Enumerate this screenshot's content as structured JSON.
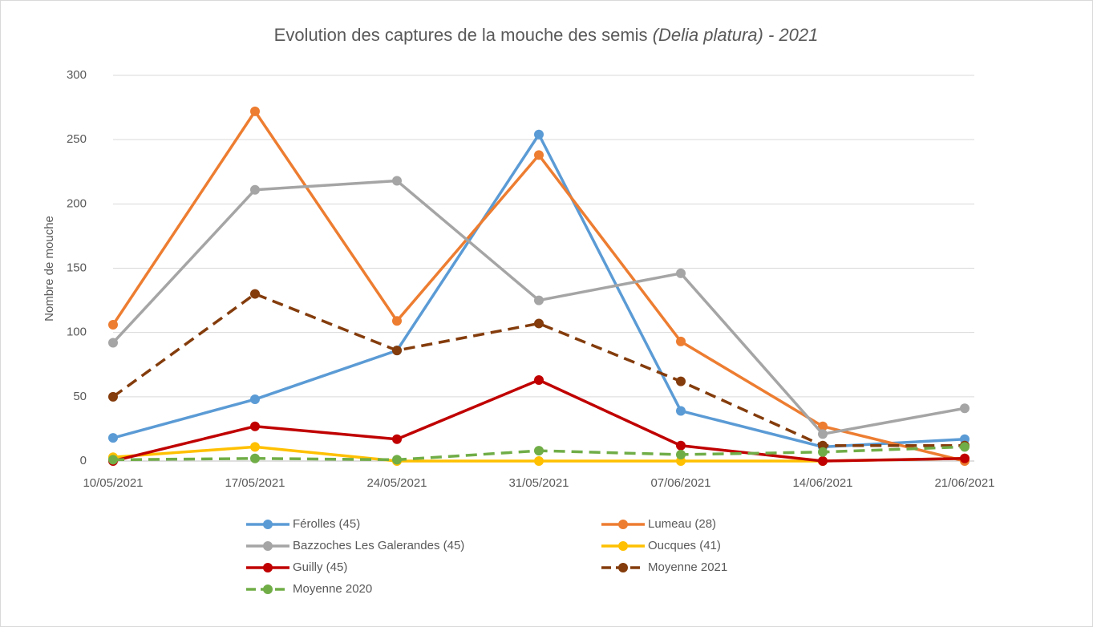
{
  "chart_data": {
    "type": "line",
    "title": [
      "Evolution des captures de la mouche des semis",
      "(Delia platura) - 2021"
    ],
    "y_label": "Nombre de mouche",
    "categories": [
      "10/05/2021",
      "17/05/2021",
      "24/05/2021",
      "31/05/2021",
      "07/06/2021",
      "14/06/2021",
      "21/06/2021"
    ],
    "series": [
      {
        "name": "Férolles (45)",
        "color": "#5b9bd5",
        "dashed": false,
        "values": [
          18,
          48,
          86,
          254,
          39,
          11,
          17
        ]
      },
      {
        "name": "Lumeau (28)",
        "color": "#ed7d31",
        "dashed": false,
        "values": [
          106,
          272,
          109,
          238,
          93,
          27,
          0
        ]
      },
      {
        "name": "Bazzoches Les Galerandes (45)",
        "color": "#a5a5a5",
        "dashed": false,
        "values": [
          92,
          211,
          218,
          125,
          146,
          21,
          41
        ]
      },
      {
        "name": "Oucques (41)",
        "color": "#ffc000",
        "dashed": false,
        "values": [
          3,
          11,
          0,
          0,
          0,
          0,
          2
        ]
      },
      {
        "name": "Guilly (45)",
        "color": "#c00000",
        "dashed": false,
        "values": [
          0,
          27,
          17,
          63,
          12,
          0,
          2
        ]
      },
      {
        "name": "Moyenne 2021",
        "color": "#843c0c",
        "dashed": true,
        "values": [
          50,
          130,
          86,
          107,
          62,
          12,
          12
        ]
      },
      {
        "name": "Moyenne 2020",
        "color": "#70ad47",
        "dashed": true,
        "values": [
          1,
          2,
          1,
          8,
          5,
          7,
          11
        ]
      }
    ],
    "ylim": [
      0,
      300
    ],
    "yticks": [
      0,
      50,
      100,
      150,
      200,
      250,
      300
    ],
    "grid": true,
    "legend": "bottom"
  }
}
